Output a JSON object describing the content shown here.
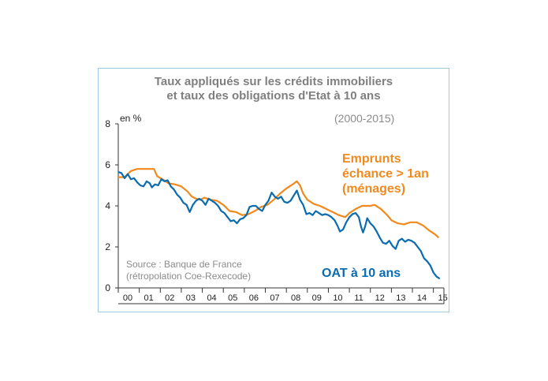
{
  "chart_data": {
    "type": "line",
    "title_line1": "Taux appliqués sur les crédits immobiliers",
    "title_line2": "et taux des obligations d'Etat à 10 ans",
    "subtitle": "(2000-2015)",
    "ylabel": "en %",
    "ylim": [
      0,
      8
    ],
    "yticks": [
      "0",
      "2",
      "4",
      "6",
      "8"
    ],
    "xlim": [
      2000,
      2015.5
    ],
    "xticks": [
      "00",
      "01",
      "02",
      "03",
      "04",
      "05",
      "06",
      "07",
      "08",
      "09",
      "10",
      "11",
      "12",
      "13",
      "14",
      "15"
    ],
    "grid": false,
    "source_line1": "Source : Banque de France",
    "source_line2": "(rétropolation Coe-Rexecode)",
    "series": [
      {
        "name": "Emprunts échance > 1an (ménages)",
        "label_lines": [
          "Emprunts",
          "échance > 1an",
          "(ménages)"
        ],
        "color": "#f08a1e",
        "points": [
          [
            2000.0,
            5.4
          ],
          [
            2000.3,
            5.4
          ],
          [
            2000.6,
            5.7
          ],
          [
            2000.9,
            5.8
          ],
          [
            2001.2,
            5.8
          ],
          [
            2001.5,
            5.8
          ],
          [
            2001.7,
            5.8
          ],
          [
            2001.85,
            5.45
          ],
          [
            2002.1,
            5.3
          ],
          [
            2002.4,
            5.1
          ],
          [
            2002.7,
            5.05
          ],
          [
            2003.0,
            4.95
          ],
          [
            2003.3,
            4.7
          ],
          [
            2003.5,
            4.45
          ],
          [
            2003.7,
            4.35
          ],
          [
            2003.9,
            4.3
          ],
          [
            2004.1,
            4.4
          ],
          [
            2004.4,
            4.3
          ],
          [
            2004.7,
            4.25
          ],
          [
            2005.0,
            4.05
          ],
          [
            2005.3,
            3.75
          ],
          [
            2005.6,
            3.7
          ],
          [
            2005.9,
            3.55
          ],
          [
            2006.2,
            3.6
          ],
          [
            2006.5,
            3.75
          ],
          [
            2006.8,
            3.95
          ],
          [
            2007.1,
            4.05
          ],
          [
            2007.4,
            4.3
          ],
          [
            2007.7,
            4.6
          ],
          [
            2008.0,
            4.85
          ],
          [
            2008.3,
            5.05
          ],
          [
            2008.5,
            5.2
          ],
          [
            2008.65,
            5.0
          ],
          [
            2008.8,
            4.6
          ],
          [
            2009.0,
            4.3
          ],
          [
            2009.3,
            4.1
          ],
          [
            2009.6,
            4.0
          ],
          [
            2009.9,
            3.85
          ],
          [
            2010.2,
            3.7
          ],
          [
            2010.5,
            3.55
          ],
          [
            2010.8,
            3.45
          ],
          [
            2011.0,
            3.65
          ],
          [
            2011.3,
            3.85
          ],
          [
            2011.6,
            4.0
          ],
          [
            2012.0,
            4.0
          ],
          [
            2012.2,
            4.05
          ],
          [
            2012.5,
            3.85
          ],
          [
            2012.8,
            3.55
          ],
          [
            2013.0,
            3.3
          ],
          [
            2013.3,
            3.15
          ],
          [
            2013.6,
            3.1
          ],
          [
            2013.9,
            3.2
          ],
          [
            2014.2,
            3.2
          ],
          [
            2014.5,
            3.05
          ],
          [
            2014.8,
            2.8
          ],
          [
            2015.1,
            2.6
          ],
          [
            2015.25,
            2.45
          ]
        ]
      },
      {
        "name": "OAT à 10 ans",
        "label_lines": [
          "OAT à 10 ans"
        ],
        "color": "#0a6cb0",
        "points": [
          [
            2000.0,
            5.65
          ],
          [
            2000.15,
            5.6
          ],
          [
            2000.3,
            5.35
          ],
          [
            2000.45,
            5.55
          ],
          [
            2000.6,
            5.3
          ],
          [
            2000.75,
            5.35
          ],
          [
            2000.9,
            5.15
          ],
          [
            2001.05,
            5.0
          ],
          [
            2001.2,
            4.95
          ],
          [
            2001.35,
            5.2
          ],
          [
            2001.5,
            5.1
          ],
          [
            2001.6,
            4.9
          ],
          [
            2001.75,
            5.05
          ],
          [
            2001.9,
            5.0
          ],
          [
            2002.05,
            5.3
          ],
          [
            2002.2,
            5.2
          ],
          [
            2002.35,
            5.25
          ],
          [
            2002.5,
            4.95
          ],
          [
            2002.65,
            4.8
          ],
          [
            2002.8,
            4.55
          ],
          [
            2002.95,
            4.4
          ],
          [
            2003.1,
            4.15
          ],
          [
            2003.25,
            4.05
          ],
          [
            2003.4,
            3.7
          ],
          [
            2003.55,
            4.05
          ],
          [
            2003.7,
            4.25
          ],
          [
            2003.85,
            4.35
          ],
          [
            2004.0,
            4.25
          ],
          [
            2004.15,
            4.05
          ],
          [
            2004.3,
            4.35
          ],
          [
            2004.45,
            4.25
          ],
          [
            2004.6,
            4.15
          ],
          [
            2004.75,
            4.0
          ],
          [
            2004.9,
            3.75
          ],
          [
            2005.05,
            3.65
          ],
          [
            2005.2,
            3.45
          ],
          [
            2005.35,
            3.25
          ],
          [
            2005.5,
            3.3
          ],
          [
            2005.65,
            3.15
          ],
          [
            2005.8,
            3.35
          ],
          [
            2005.95,
            3.4
          ],
          [
            2006.1,
            3.55
          ],
          [
            2006.25,
            3.95
          ],
          [
            2006.4,
            4.0
          ],
          [
            2006.55,
            4.0
          ],
          [
            2006.7,
            3.85
          ],
          [
            2006.85,
            3.75
          ],
          [
            2007.0,
            4.05
          ],
          [
            2007.15,
            4.25
          ],
          [
            2007.3,
            4.65
          ],
          [
            2007.45,
            4.45
          ],
          [
            2007.6,
            4.35
          ],
          [
            2007.75,
            4.45
          ],
          [
            2007.9,
            4.2
          ],
          [
            2008.05,
            4.15
          ],
          [
            2008.2,
            4.25
          ],
          [
            2008.35,
            4.5
          ],
          [
            2008.5,
            4.75
          ],
          [
            2008.65,
            4.3
          ],
          [
            2008.8,
            4.05
          ],
          [
            2008.95,
            3.6
          ],
          [
            2009.1,
            3.65
          ],
          [
            2009.25,
            3.55
          ],
          [
            2009.4,
            3.75
          ],
          [
            2009.55,
            3.65
          ],
          [
            2009.7,
            3.55
          ],
          [
            2009.85,
            3.6
          ],
          [
            2010.0,
            3.55
          ],
          [
            2010.15,
            3.45
          ],
          [
            2010.3,
            3.3
          ],
          [
            2010.45,
            3.0
          ],
          [
            2010.55,
            2.75
          ],
          [
            2010.7,
            2.85
          ],
          [
            2010.85,
            3.2
          ],
          [
            2011.0,
            3.45
          ],
          [
            2011.15,
            3.6
          ],
          [
            2011.3,
            3.65
          ],
          [
            2011.45,
            3.45
          ],
          [
            2011.55,
            3.0
          ],
          [
            2011.65,
            2.7
          ],
          [
            2011.75,
            3.0
          ],
          [
            2011.85,
            3.4
          ],
          [
            2012.0,
            3.15
          ],
          [
            2012.15,
            3.0
          ],
          [
            2012.3,
            2.75
          ],
          [
            2012.45,
            2.45
          ],
          [
            2012.6,
            2.2
          ],
          [
            2012.75,
            2.15
          ],
          [
            2012.9,
            2.3
          ],
          [
            2013.05,
            2.05
          ],
          [
            2013.2,
            1.9
          ],
          [
            2013.35,
            2.3
          ],
          [
            2013.5,
            2.4
          ],
          [
            2013.65,
            2.25
          ],
          [
            2013.8,
            2.35
          ],
          [
            2013.95,
            2.3
          ],
          [
            2014.1,
            2.2
          ],
          [
            2014.25,
            2.0
          ],
          [
            2014.4,
            1.8
          ],
          [
            2014.55,
            1.45
          ],
          [
            2014.7,
            1.3
          ],
          [
            2014.85,
            1.1
          ],
          [
            2015.0,
            0.75
          ],
          [
            2015.15,
            0.55
          ],
          [
            2015.3,
            0.45
          ]
        ]
      }
    ]
  }
}
